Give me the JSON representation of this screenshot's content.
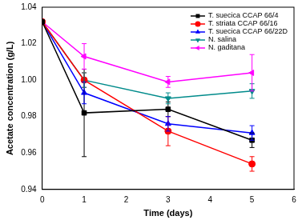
{
  "chart_data": {
    "type": "line",
    "x_label": "Time (days)",
    "y_label": "Acetate concentration (g/L)",
    "xlim": [
      0,
      6
    ],
    "xticks": [
      0,
      1,
      2,
      3,
      4,
      5,
      6
    ],
    "ylim": [
      0.94,
      1.04
    ],
    "yticks": [
      0.94,
      0.96,
      0.98,
      {
        "value": 1,
        "label": "1.00"
      },
      1.02,
      1.04
    ],
    "grid": false,
    "legend": "upper right",
    "x": [
      0,
      1,
      3,
      5
    ],
    "series": [
      {
        "name": "T. suecica CCAP 66/4",
        "color": "#000000",
        "marker": "square",
        "values": [
          1.032,
          0.982,
          0.984,
          0.967
        ],
        "errors": [
          0,
          0.024,
          0.004,
          0.004
        ]
      },
      {
        "name": "T. striata CCAP 66/16",
        "color": "#ff0000",
        "marker": "circle",
        "values": [
          1.032,
          1.0,
          0.972,
          0.954
        ],
        "errors": [
          0,
          0.004,
          0.008,
          0.004
        ]
      },
      {
        "name": "T. suecica CCAP 66/22D",
        "color": "#0000ff",
        "marker": "triangle-up",
        "values": [
          1.032,
          0.993,
          0.976,
          0.971
        ],
        "errors": [
          0,
          0.006,
          0.004,
          0.004
        ]
      },
      {
        "name": "N. salina",
        "color": "#008b8b",
        "marker": "triangle-down",
        "values": [
          1.032,
          1.0,
          0.99,
          0.994
        ],
        "errors": [
          0,
          0.004,
          0.003,
          0.004
        ]
      },
      {
        "name": "N. gaditana",
        "color": "#ff00ff",
        "marker": "triangle-left",
        "values": [
          1.032,
          1.013,
          0.999,
          1.004
        ],
        "errors": [
          0,
          0.007,
          0.003,
          0.01
        ]
      }
    ]
  }
}
